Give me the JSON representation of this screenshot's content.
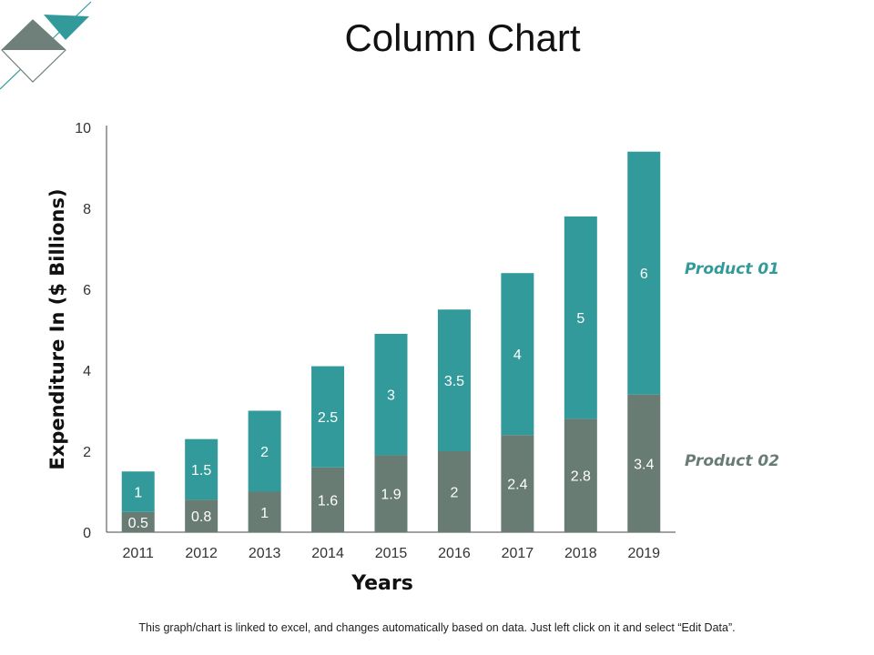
{
  "page": {
    "title": "Column Chart",
    "footer_note": "This graph/chart is linked to excel, and changes automatically based on data.  Just left click on it and select “Edit Data”."
  },
  "colors": {
    "product_01": "#339A9B",
    "product_02": "#687C74",
    "axis": "#444444",
    "text": "#111111"
  },
  "chart_data": {
    "type": "bar",
    "stacked": true,
    "title": "Column Chart",
    "xlabel": "Years",
    "ylabel": "Expenditure In ($ Billions)",
    "ylim": [
      0,
      10
    ],
    "yticks": [
      "0",
      "2",
      "4",
      "6",
      "8",
      "10"
    ],
    "categories": [
      "2011",
      "2012",
      "2013",
      "2014",
      "2015",
      "2016",
      "2017",
      "2018",
      "2019"
    ],
    "series": [
      {
        "name": "Product 02",
        "values": [
          0.5,
          0.8,
          1,
          1.6,
          1.9,
          2,
          2.4,
          2.8,
          3.4
        ],
        "labels": [
          "0.5",
          "0.8",
          "1",
          "1.6",
          "1.9",
          "2",
          "2.4",
          "2.8",
          "3.4"
        ]
      },
      {
        "name": "Product 01",
        "values": [
          1,
          1.5,
          2,
          2.5,
          3,
          3.5,
          4,
          5,
          6
        ],
        "labels": [
          "1",
          "1.5",
          "2",
          "2.5",
          "3",
          "3.5",
          "4",
          "5",
          "6"
        ]
      }
    ],
    "legend": "right",
    "grid": false
  }
}
